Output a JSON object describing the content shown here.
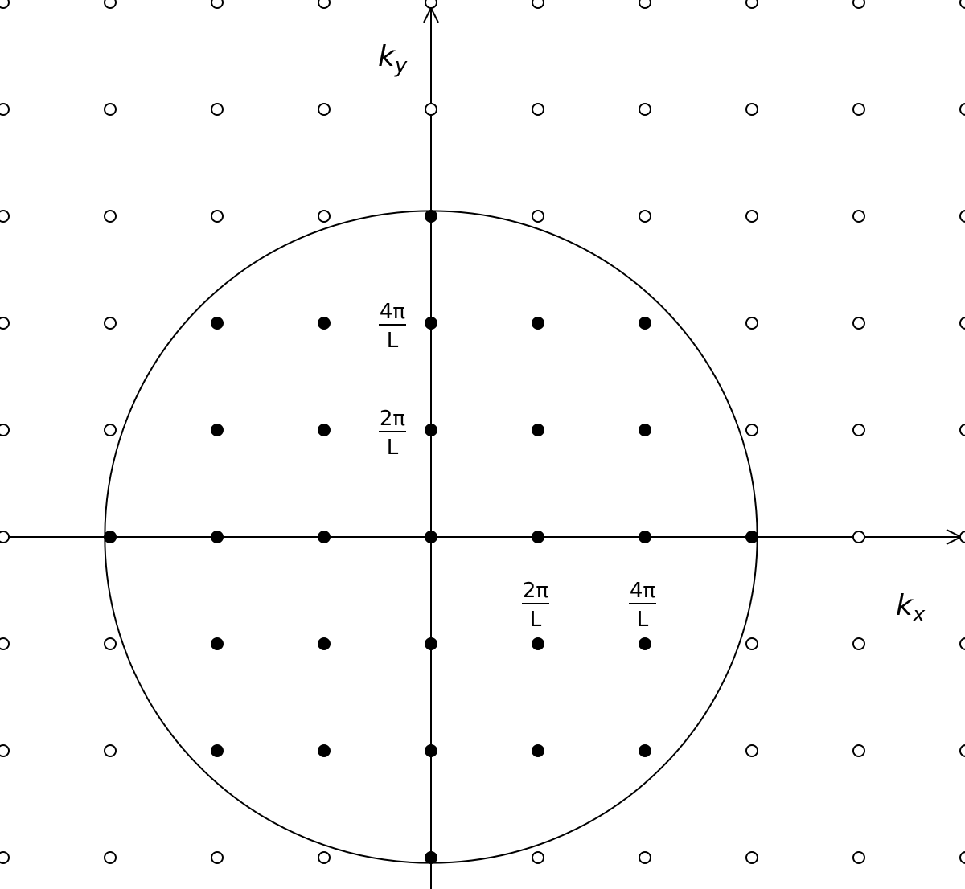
{
  "diagram": {
    "axes": {
      "x_label": {
        "base": "k",
        "sub": "x"
      },
      "y_label": {
        "base": "k",
        "sub": "y"
      }
    },
    "lattice_spacing_label": "2π/L",
    "x_tick_labels": [
      {
        "n": 1,
        "numerator": "2π",
        "denominator": "L"
      },
      {
        "n": 2,
        "numerator": "4π",
        "denominator": "L"
      }
    ],
    "y_tick_labels": [
      {
        "n": 1,
        "numerator": "2π",
        "denominator": "L"
      },
      {
        "n": 2,
        "numerator": "4π",
        "denominator": "L"
      }
    ],
    "lattice": {
      "n_min": -4,
      "n_max": 5,
      "m_min": -3,
      "m_max": 5
    },
    "circle_radius_units": 3.05,
    "colors": {
      "ink": "#000000",
      "open_fill": "#ffffff"
    }
  }
}
